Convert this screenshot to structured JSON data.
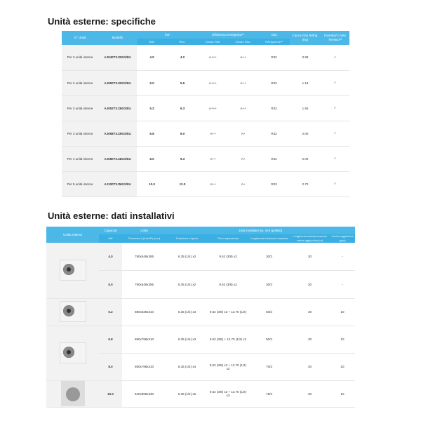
{
  "spec": {
    "title": "Unità esterne: specifiche",
    "headers": {
      "unita": "N° Unità",
      "modello": "Modello",
      "kw": "kW",
      "raff": "Raff.",
      "risc": "Risc.",
      "eff": "Efficienza Energetica*¹",
      "eff_raff": "Classe Raff.",
      "eff_risc": "Classe Risc.",
      "gas": "Gas",
      "gas_sub": "Refrigerante*³",
      "carica": "Carica Gas Refrig. (Kg)",
      "incentivi": "Incentivi/ Conto Termico*²"
    },
    "rows": [
      [
        "Per 2 unità interne",
        "AJ040TXJ2KG/EU",
        "4.0",
        "4.2",
        "A+++",
        "A++",
        "R32",
        "0.98",
        "✓"
      ],
      [
        "Per 2 unità interne",
        "AJ050TXJ2KG/EU",
        "5.0",
        "5.6",
        "A+++",
        "A++",
        "R32",
        "1.18",
        "✓"
      ],
      [
        "Per 3 unità interne",
        "AJ052TXJ3KG/EU",
        "5.2",
        "6.3",
        "A+++",
        "A++",
        "R32",
        "1.55",
        "✓"
      ],
      [
        "Per 3 unità interne",
        "AJ068TXJ3KG/EU",
        "6.8",
        "8.0",
        "A++",
        "A+",
        "R32",
        "2.00",
        "✓"
      ],
      [
        "Per 4 unità interne",
        "AJ080TXJ4KG/EU",
        "8.0",
        "9.3",
        "A++",
        "A+",
        "R32",
        "2.00",
        "✓"
      ],
      [
        "Per 5 unità interne",
        "AJ100TXJ5KG/EU",
        "10.0",
        "12.0",
        "A++",
        "A+",
        "R32",
        "2.70",
        "✓"
      ]
    ]
  },
  "inst": {
    "title": "Unità esterne: dati installativi",
    "headers": {
      "unita": "Unità esterna",
      "cap": "Capacità",
      "cap_sub": "kW",
      "dim": "Unità",
      "dim_sub": "Dimensioni (LxAxP) (mm)",
      "dati": "Dati installativi (ø, mm (pollici))",
      "liq": "Tubazione Liquido",
      "gas": "Tubo aspirazione",
      "lung": "Lunghezza tubazioni massima",
      "lung2": "Lunghezza massima senza carica aggiuntiva (m)",
      "car": "Carica aggiuntiva (g/m)"
    },
    "rows": [
      [
        "4.0",
        "790x548x285",
        "6.35 (1/4) x2",
        "9.52 (3/8) x2",
        "30/3",
        "30",
        "-"
      ],
      [
        "5.0",
        "790x548x285",
        "6.35 (1/4) x2",
        "9.52 (3/8) x2",
        "30/3",
        "30",
        "-"
      ],
      [
        "5.2",
        "880x638x310",
        "6.35 (1/4) x3",
        "9.52 (3/8) x2 + 12.70 (1/2)",
        "50/3",
        "30",
        "10"
      ],
      [
        "6.8",
        "880x798x310",
        "6.35 (1/4) x3",
        "9.52 (3/8) + 12.70 (1/2) x2",
        "50/3",
        "30",
        "10"
      ],
      [
        "8.0",
        "880x798x310",
        "6.35 (1/4) x4",
        "9.52 (3/8) x2 + 12.70 (1/2) x2",
        "70/3",
        "30",
        "20"
      ],
      [
        "10.0",
        "940x998x330",
        "6.35 (1/4) x5",
        "9.52 (3/8) x2 + 12.70 (1/2) x3",
        "75/3",
        "30",
        "10"
      ]
    ]
  }
}
